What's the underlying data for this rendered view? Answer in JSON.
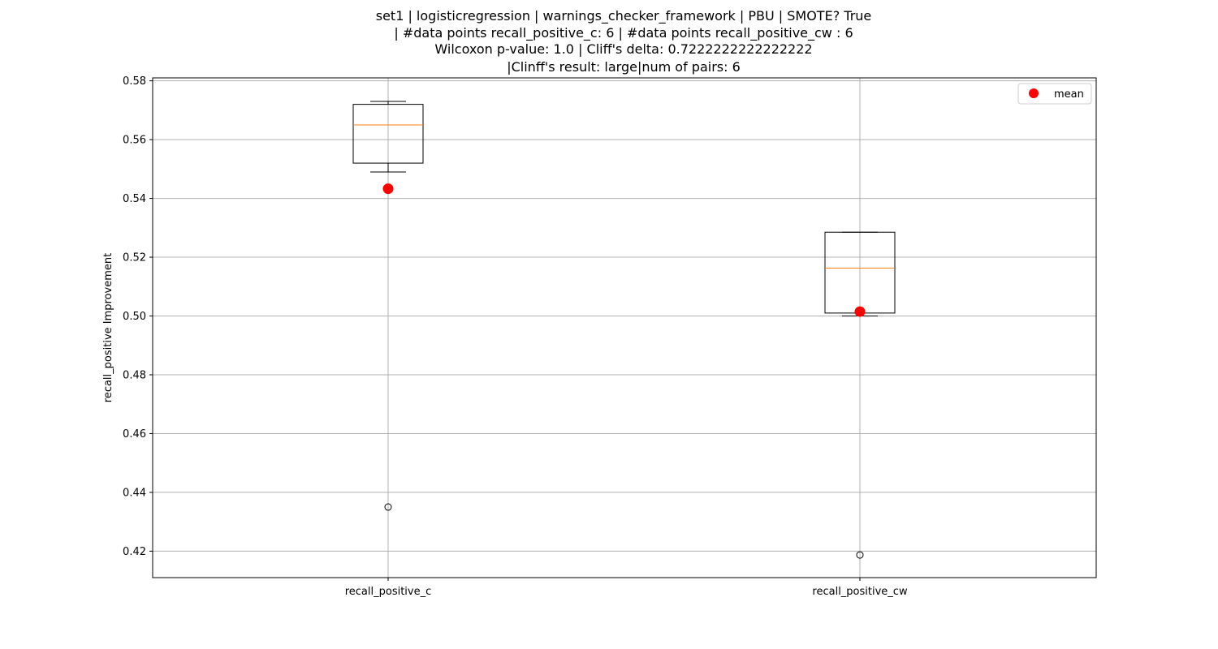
{
  "chart_data": {
    "type": "box",
    "title_lines": [
      "set1 | logisticregression | warnings_checker_framework | PBU | SMOTE? True",
      " | #data points recall_positive_c: 6 | #data points recall_positive_cw : 6",
      "Wilcoxon p-value: 1.0 | Cliff's delta: 0.7222222222222222",
      "|Clinff's result: large|num of pairs: 6"
    ],
    "xlabel": "",
    "ylabel": "recall_positive Improvement",
    "ylim": [
      0.411,
      0.581
    ],
    "yticks": [
      0.42,
      0.44,
      0.46,
      0.48,
      0.5,
      0.52,
      0.54,
      0.56,
      0.58
    ],
    "ytick_labels": [
      "0.42",
      "0.44",
      "0.46",
      "0.48",
      "0.50",
      "0.52",
      "0.54",
      "0.56",
      "0.58"
    ],
    "grid": true,
    "legend": {
      "position": "top-right",
      "entries": [
        {
          "label": "mean",
          "color": "#ff0000",
          "marker": "circle"
        }
      ]
    },
    "categories": [
      "recall_positive_c",
      "recall_positive_cw"
    ],
    "boxes": [
      {
        "name": "recall_positive_c",
        "whisker_low": 0.549,
        "q1": 0.552,
        "median": 0.565,
        "q3": 0.572,
        "whisker_high": 0.573,
        "outliers": [
          0.435
        ],
        "mean": 0.5433
      },
      {
        "name": "recall_positive_cw",
        "whisker_low": 0.5,
        "q1": 0.501,
        "median": 0.5163,
        "q3": 0.5285,
        "whisker_high": 0.5285,
        "outliers": [
          0.4187
        ],
        "mean": 0.5015
      }
    ],
    "colors": {
      "box": "#000000",
      "median": "#ff7f0e",
      "mean": "#ff0000",
      "grid": "#b0b0b0"
    }
  }
}
